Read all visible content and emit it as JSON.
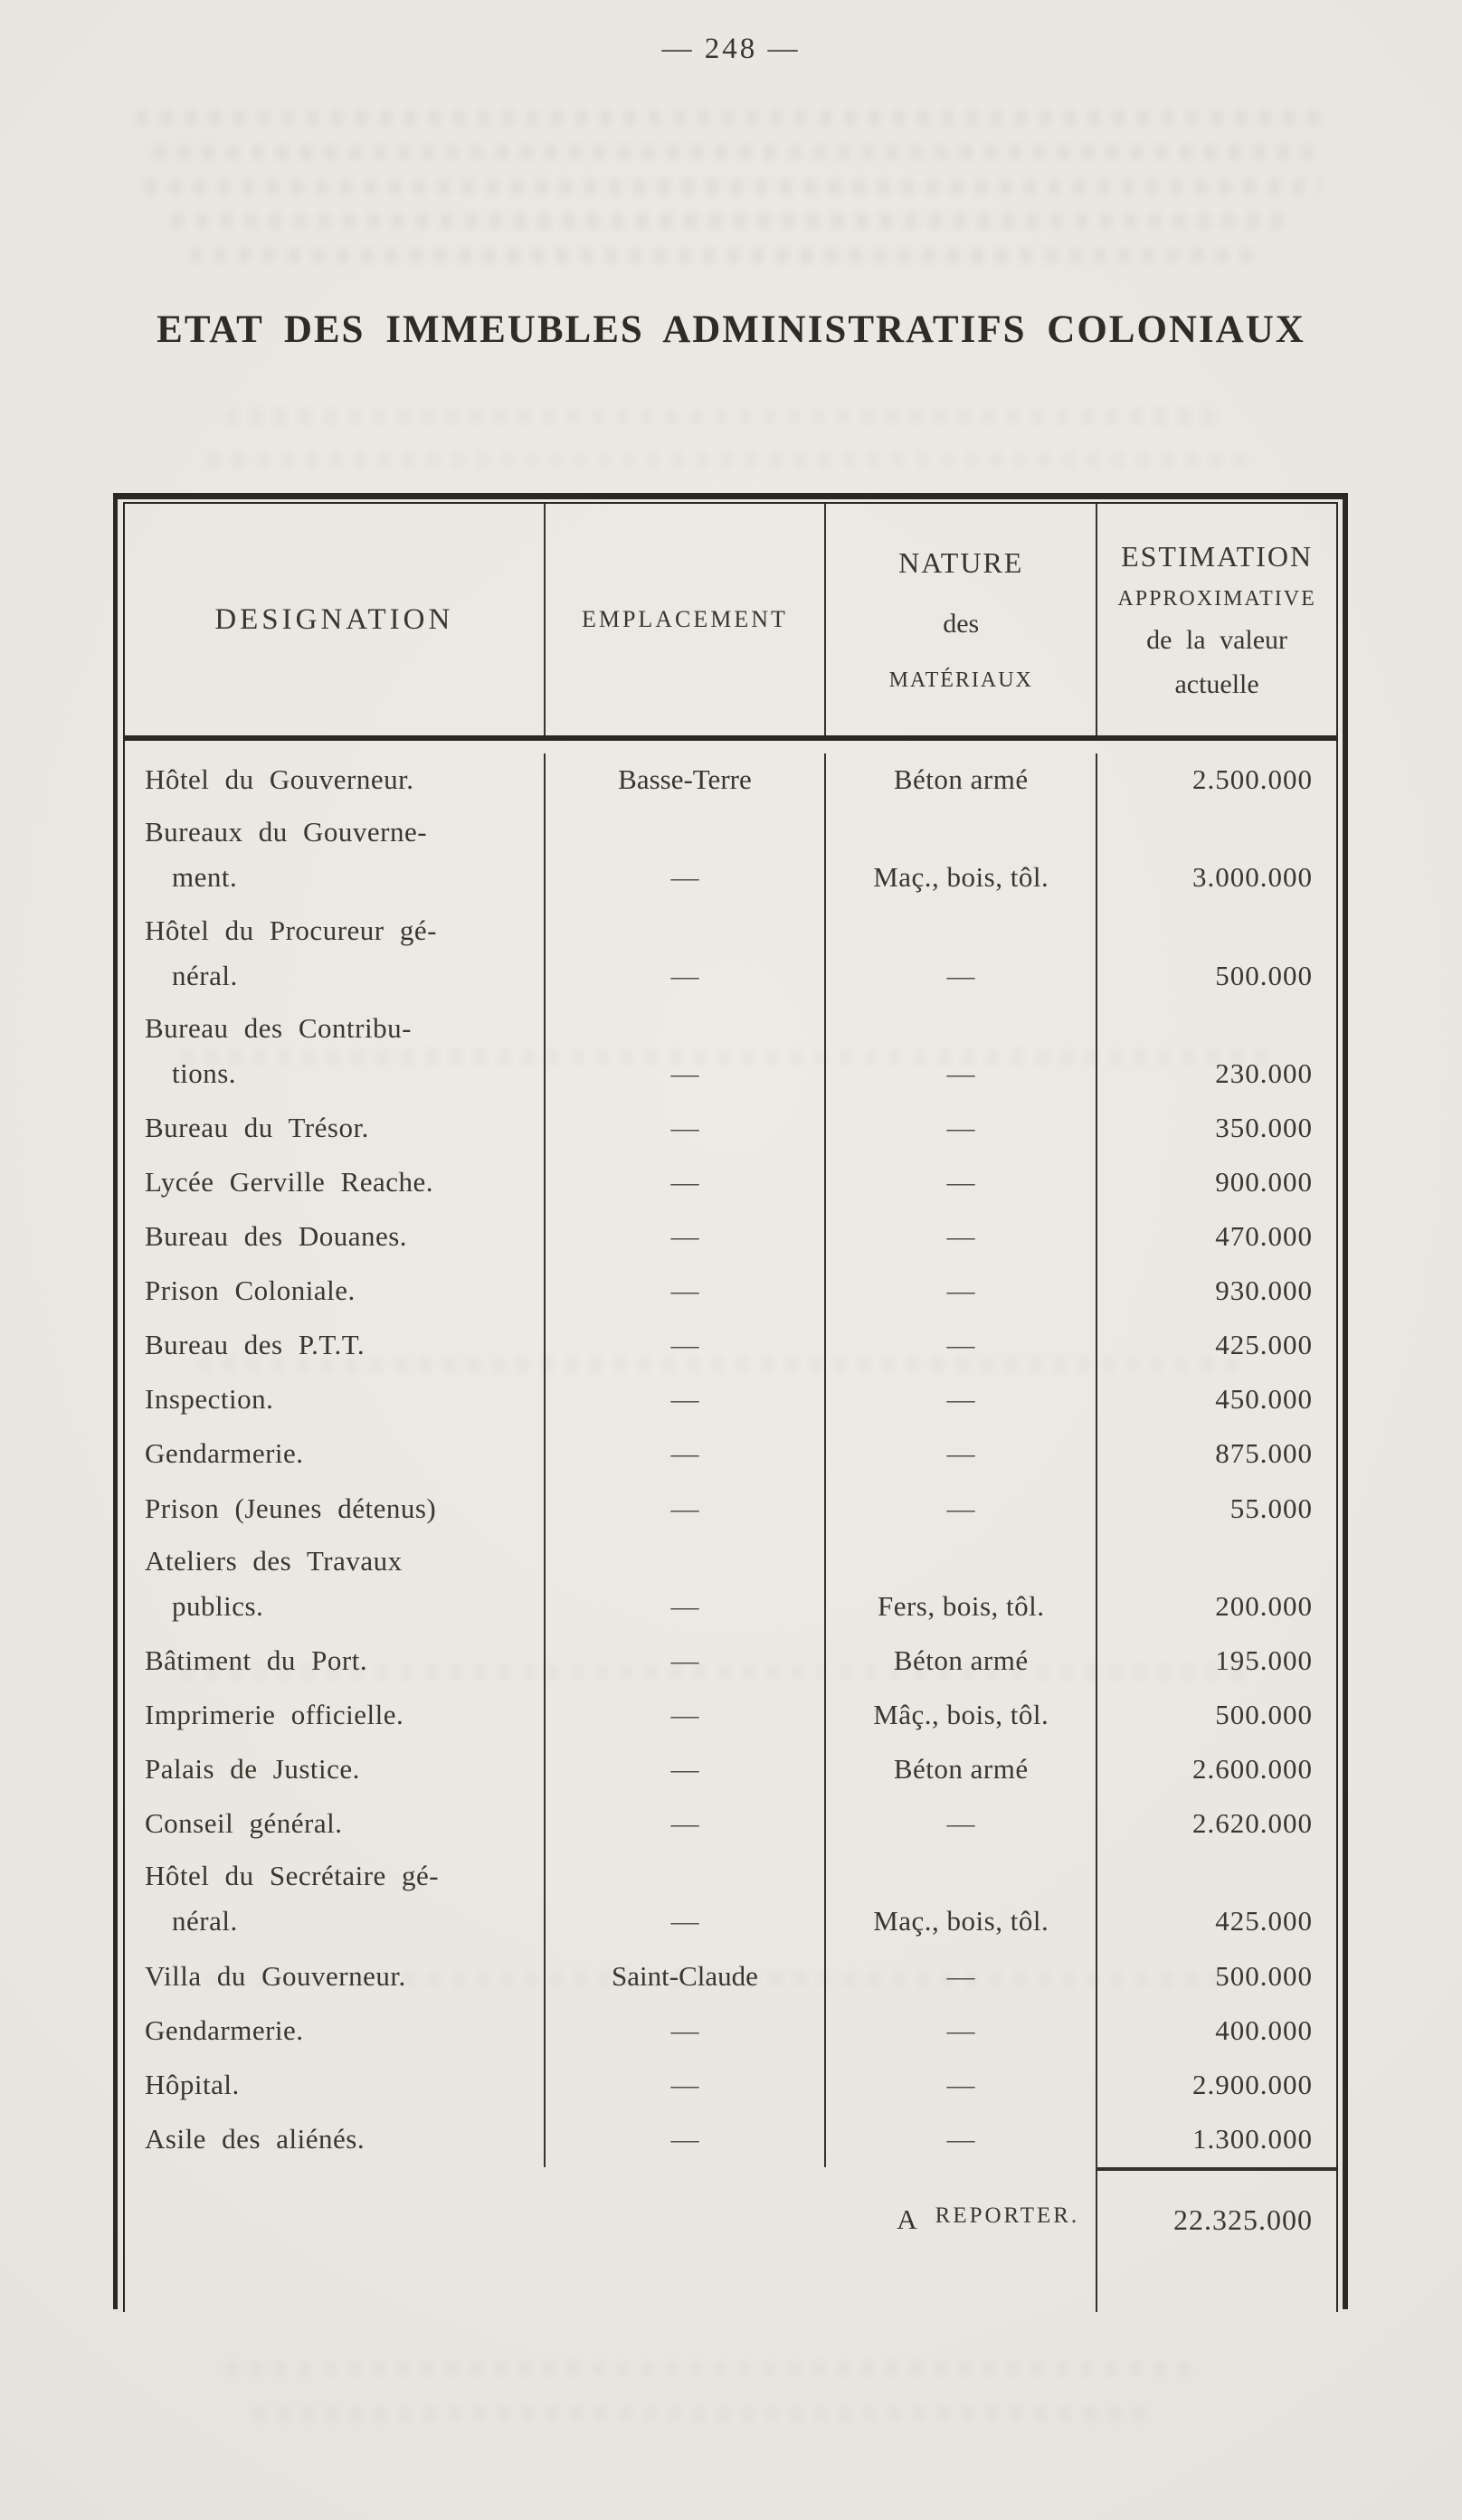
{
  "page": {
    "number": "— 248 —",
    "title": "ETAT DES IMMEUBLES ADMINISTRATIFS COLONIAUX"
  },
  "table": {
    "header": {
      "designation": "DESIGNATION",
      "emplacement": "EMPLACEMENT",
      "nature_lines": [
        "NATURE",
        "des",
        "MATÉRIAUX"
      ],
      "estimation_lines": [
        "ESTIMATION",
        "APPROXIMATIVE",
        "de la valeur",
        "actuelle"
      ]
    },
    "rows": [
      {
        "lines": [
          "Hôtel du Gouverneur."
        ],
        "emplacement": "Basse-Terre",
        "nature": "Béton armé",
        "estimation": "2.500.000"
      },
      {
        "lines": [
          "Bureaux du Gouverne-",
          "ment."
        ],
        "emplacement": "—",
        "nature": "Maç., bois, tôl.",
        "estimation": "3.000.000"
      },
      {
        "lines": [
          "Hôtel du Procureur gé-",
          "néral."
        ],
        "emplacement": "—",
        "nature": "—",
        "estimation": "500.000"
      },
      {
        "lines": [
          "Bureau des Contribu-",
          "tions."
        ],
        "emplacement": "—",
        "nature": "—",
        "estimation": "230.000"
      },
      {
        "lines": [
          "Bureau du Trésor."
        ],
        "emplacement": "—",
        "nature": "—",
        "estimation": "350.000"
      },
      {
        "lines": [
          "Lycée Gerville Reache."
        ],
        "emplacement": "—",
        "nature": "—",
        "estimation": "900.000"
      },
      {
        "lines": [
          "Bureau des Douanes."
        ],
        "emplacement": "—",
        "nature": "—",
        "estimation": "470.000"
      },
      {
        "lines": [
          "Prison Coloniale."
        ],
        "emplacement": "—",
        "nature": "—",
        "estimation": "930.000"
      },
      {
        "lines": [
          "Bureau des P.T.T."
        ],
        "emplacement": "—",
        "nature": "—",
        "estimation": "425.000"
      },
      {
        "lines": [
          "Inspection."
        ],
        "emplacement": "—",
        "nature": "—",
        "estimation": "450.000"
      },
      {
        "lines": [
          "Gendarmerie."
        ],
        "emplacement": "—",
        "nature": "—",
        "estimation": "875.000"
      },
      {
        "lines": [
          "Prison (Jeunes détenus)"
        ],
        "emplacement": "—",
        "nature": "—",
        "estimation": "55.000"
      },
      {
        "lines": [
          "Ateliers des Travaux",
          "publics."
        ],
        "emplacement": "—",
        "nature": "Fers, bois, tôl.",
        "estimation": "200.000"
      },
      {
        "lines": [
          "Bâtiment du Port."
        ],
        "emplacement": "—",
        "nature": "Béton armé",
        "estimation": "195.000"
      },
      {
        "lines": [
          "Imprimerie officielle."
        ],
        "emplacement": "—",
        "nature": "Mâç., bois, tôl.",
        "estimation": "500.000"
      },
      {
        "lines": [
          "Palais de Justice."
        ],
        "emplacement": "—",
        "nature": "Béton armé",
        "estimation": "2.600.000"
      },
      {
        "lines": [
          "Conseil général."
        ],
        "emplacement": "—",
        "nature": "—",
        "estimation": "2.620.000"
      },
      {
        "lines": [
          "Hôtel du Secrétaire gé-",
          "néral."
        ],
        "emplacement": "—",
        "nature": "Maç., bois, tôl.",
        "estimation": "425.000"
      },
      {
        "lines": [
          "Villa du Gouverneur."
        ],
        "emplacement": "Saint-Claude",
        "nature": "—",
        "estimation": "500.000"
      },
      {
        "lines": [
          "Gendarmerie."
        ],
        "emplacement": "—",
        "nature": "—",
        "estimation": "400.000"
      },
      {
        "lines": [
          "Hôpital."
        ],
        "emplacement": "—",
        "nature": "—",
        "estimation": "2.900.000"
      },
      {
        "lines": [
          "Asile des aliénés."
        ],
        "emplacement": "—",
        "nature": "—",
        "estimation": "1.300.000"
      }
    ],
    "footer": {
      "label_cap": "A",
      "label_small": "REPORTER.",
      "value": "22.325.000"
    }
  },
  "colors": {
    "paper": "#e9e6e0",
    "ink": "#3a362e",
    "border": "#2b2722"
  }
}
